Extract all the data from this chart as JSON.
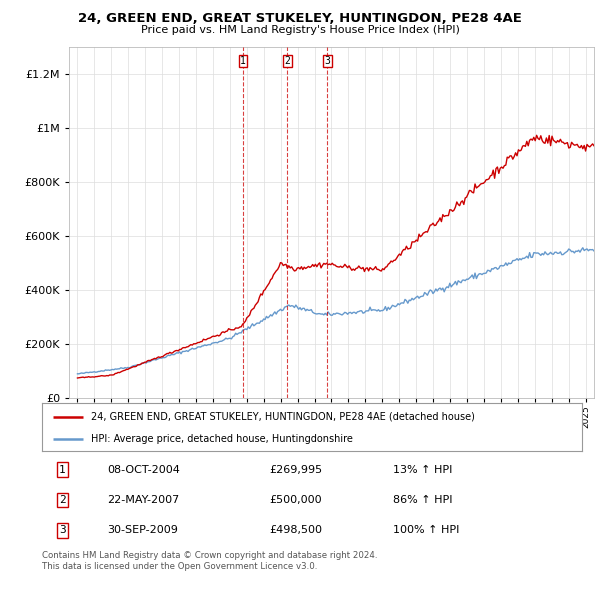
{
  "title": "24, GREEN END, GREAT STUKELEY, HUNTINGDON, PE28 4AE",
  "subtitle": "Price paid vs. HM Land Registry's House Price Index (HPI)",
  "legend_red": "24, GREEN END, GREAT STUKELEY, HUNTINGDON, PE28 4AE (detached house)",
  "legend_blue": "HPI: Average price, detached house, Huntingdonshire",
  "sales": [
    {
      "num": 1,
      "date": "08-OCT-2004",
      "price": 269995,
      "pct": "13%",
      "dir": "↑",
      "x": 2004.77
    },
    {
      "num": 2,
      "date": "22-MAY-2007",
      "price": 500000,
      "pct": "86%",
      "dir": "↑",
      "x": 2007.39
    },
    {
      "num": 3,
      "date": "30-SEP-2009",
      "price": 498500,
      "pct": "100%",
      "dir": "↑",
      "x": 2009.75
    }
  ],
  "table_rows": [
    [
      "1",
      "08-OCT-2004",
      "£269,995",
      "13% ↑ HPI"
    ],
    [
      "2",
      "22-MAY-2007",
      "£500,000",
      "86% ↑ HPI"
    ],
    [
      "3",
      "30-SEP-2009",
      "£498,500",
      "100% ↑ HPI"
    ]
  ],
  "footnote1": "Contains HM Land Registry data © Crown copyright and database right 2024.",
  "footnote2": "This data is licensed under the Open Government Licence v3.0.",
  "red_color": "#cc0000",
  "blue_color": "#6699cc",
  "background_color": "#ffffff",
  "grid_color": "#dddddd",
  "ylim": [
    0,
    1300000
  ],
  "xlim": [
    1994.5,
    2025.5
  ],
  "x_start": 1995,
  "x_end": 2025
}
